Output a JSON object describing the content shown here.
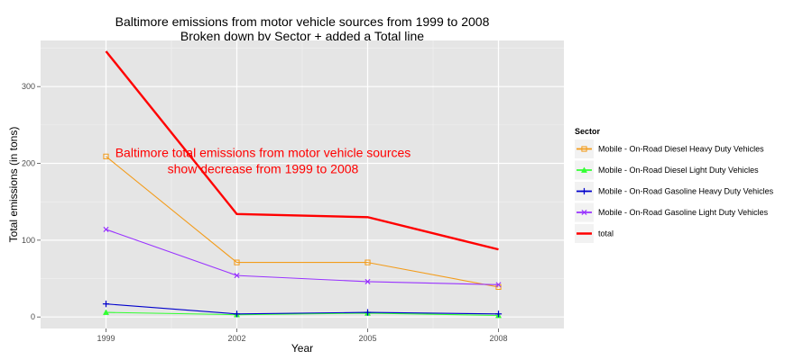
{
  "chart_data": {
    "type": "line",
    "title": "Baltimore emissions from motor vehicle sources from 1999 to 2008",
    "subtitle": "Broken down by Sector + added a Total line",
    "xlabel": "Year",
    "ylabel": "Total emissions (in tons)",
    "x": [
      1999,
      2002,
      2005,
      2008
    ],
    "xlim": [
      1997.5,
      2009.5
    ],
    "ylim": [
      -15,
      360
    ],
    "yticks": [
      0,
      100,
      200,
      300
    ],
    "grid": true,
    "legend": {
      "title": "Sector",
      "position": "right"
    },
    "series": [
      {
        "name": "Mobile - On-Road Diesel Heavy Duty Vehicles",
        "color": "#f39c1b",
        "marker": "square-open",
        "values": [
          209,
          71,
          71,
          39
        ]
      },
      {
        "name": "Mobile - On-Road Diesel Light Duty Vehicles",
        "color": "#33ff33",
        "marker": "triangle",
        "values": [
          6,
          3,
          5,
          2
        ]
      },
      {
        "name": "Mobile - On-Road Gasoline Heavy Duty Vehicles",
        "color": "#0000cc",
        "marker": "plus",
        "values": [
          17,
          4,
          6,
          4
        ]
      },
      {
        "name": "Mobile - On-Road Gasoline Light Duty Vehicles",
        "color": "#9933ff",
        "marker": "x",
        "values": [
          114,
          54,
          46,
          42
        ]
      },
      {
        "name": "total",
        "color": "#ff0000",
        "marker": "none",
        "values": [
          346,
          134,
          130,
          88
        ]
      }
    ],
    "annotations": [
      {
        "text": "Baltimore total emissions from motor vehicle sources",
        "x": 2002.6,
        "y": 208,
        "color": "#ff0000"
      },
      {
        "text": "show decrease from 1999 to 2008",
        "x": 2002.6,
        "y": 187,
        "color": "#ff0000"
      }
    ]
  }
}
